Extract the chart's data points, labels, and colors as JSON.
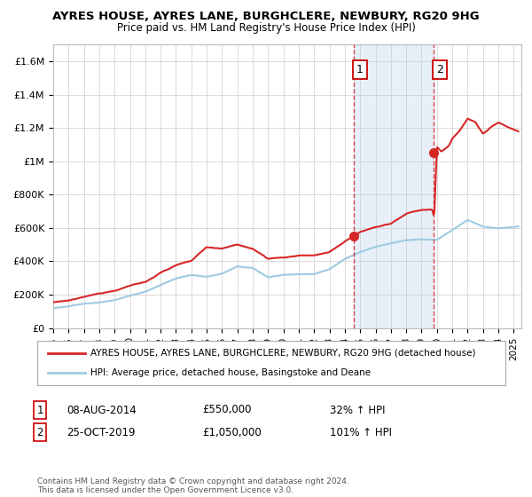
{
  "title": "AYRES HOUSE, AYRES LANE, BURGHCLERE, NEWBURY, RG20 9HG",
  "subtitle": "Price paid vs. HM Land Registry's House Price Index (HPI)",
  "ylabel_ticks": [
    "£0",
    "£200K",
    "£400K",
    "£600K",
    "£800K",
    "£1M",
    "£1.2M",
    "£1.4M",
    "£1.6M"
  ],
  "ytick_vals": [
    0,
    200000,
    400000,
    600000,
    800000,
    1000000,
    1200000,
    1400000,
    1600000
  ],
  "ylim": [
    0,
    1700000
  ],
  "xlim_start": 1995,
  "xlim_end": 2025.5,
  "xticks": [
    1995,
    1996,
    1997,
    1998,
    1999,
    2000,
    2001,
    2002,
    2003,
    2004,
    2005,
    2006,
    2007,
    2008,
    2009,
    2010,
    2011,
    2012,
    2013,
    2014,
    2015,
    2016,
    2017,
    2018,
    2019,
    2020,
    2021,
    2022,
    2023,
    2024,
    2025
  ],
  "sale1_x": 2014.6,
  "sale1_y": 550000,
  "sale2_x": 2019.8,
  "sale2_y": 1050000,
  "hpi_line_color": "#9ecae1",
  "price_line_color": "#d62728",
  "shaded_region_color": "#deebf7",
  "shaded_alpha": 0.7,
  "legend_house": "AYRES HOUSE, AYRES LANE, BURGHCLERE, NEWBURY, RG20 9HG (detached house)",
  "legend_hpi": "HPI: Average price, detached house, Basingstoke and Deane",
  "sale1_date": "08-AUG-2014",
  "sale1_price": "£550,000",
  "sale1_hpi": "32% ↑ HPI",
  "sale2_date": "25-OCT-2019",
  "sale2_price": "£1,050,000",
  "sale2_hpi": "101% ↑ HPI",
  "footnote": "Contains HM Land Registry data © Crown copyright and database right 2024.\nThis data is licensed under the Open Government Licence v3.0.",
  "background_color": "#ffffff",
  "grid_color": "#cccccc"
}
